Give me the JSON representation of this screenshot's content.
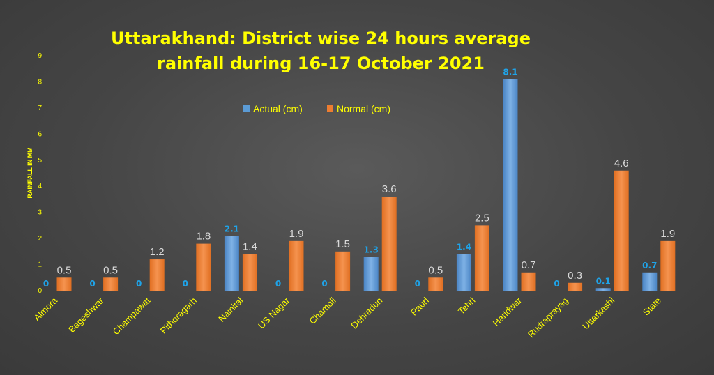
{
  "chart_data": {
    "type": "bar",
    "title": "Uttarakhand: District wise 24 hours average rainfall during 16-17 October 2021",
    "title_lines": [
      "Uttarakhand: District wise 24 hours average",
      "rainfall during 16-17 October 2021"
    ],
    "xlabel": "",
    "ylabel": "RAINFALL IN MM",
    "ylim": [
      0,
      9
    ],
    "yticks": [
      0,
      1,
      2,
      3,
      4,
      5,
      6,
      7,
      8,
      9
    ],
    "grid": false,
    "legend_position": "top-center",
    "categories": [
      "Almora",
      "Bageshwar",
      "Champawat",
      "Pithoragarh",
      "Nainital",
      "US Nagar",
      "Chamoli",
      "Dehradun",
      "Pauri",
      "Tehri",
      "Haridwar",
      "Rudraprayag",
      "Uttarkashi",
      "State"
    ],
    "series": [
      {
        "name": "Actual (cm)",
        "color": "#5b9bd5",
        "label_color": "#1fa3e8",
        "values": [
          0,
          0,
          0,
          0,
          2.1,
          0,
          0,
          1.3,
          0,
          1.4,
          8.1,
          0,
          0.1,
          0.7
        ],
        "labels": [
          "0",
          "0",
          "0",
          "0",
          "2.1",
          "0",
          "0",
          "1.3",
          "0",
          "1.4",
          "8.1",
          "0",
          "0.1",
          "0.7"
        ]
      },
      {
        "name": "Normal (cm)",
        "color": "#ed7d31",
        "label_color": "#d9d9d9",
        "values": [
          0.5,
          0.5,
          1.2,
          1.8,
          1.4,
          1.9,
          1.5,
          3.6,
          0.5,
          2.5,
          0.7,
          0.3,
          4.6,
          1.9
        ],
        "labels": [
          "0.5",
          "0.5",
          "1.2",
          "1.8",
          "1.4",
          "1.9",
          "1.5",
          "3.6",
          "0.5",
          "2.5",
          "0.7",
          "0.3",
          "4.6",
          "1.9"
        ]
      }
    ]
  }
}
